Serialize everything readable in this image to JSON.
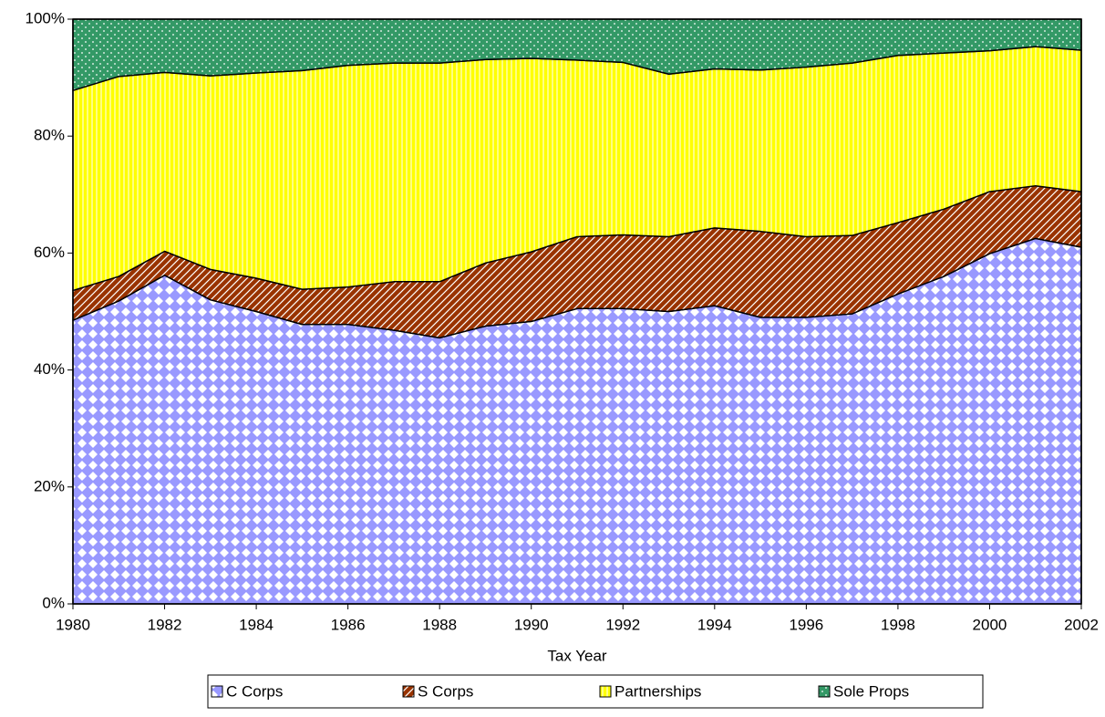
{
  "chart_data": {
    "type": "stacked_area",
    "x_label": "Tax Year",
    "x": [
      1980,
      1981,
      1982,
      1983,
      1984,
      1985,
      1986,
      1987,
      1988,
      1989,
      1990,
      1991,
      1992,
      1993,
      1994,
      1995,
      1996,
      1997,
      1998,
      1999,
      2000,
      2001,
      2002
    ],
    "xlim": [
      1980,
      2002
    ],
    "xticks": [
      1980,
      1982,
      1984,
      1986,
      1988,
      1990,
      1992,
      1994,
      1996,
      1998,
      2000,
      2002
    ],
    "ylim": [
      0,
      100
    ],
    "yticks": [
      {
        "value": 0,
        "label": "0%"
      },
      {
        "value": 20,
        "label": "20%"
      },
      {
        "value": 40,
        "label": "40%"
      },
      {
        "value": 60,
        "label": "60%"
      },
      {
        "value": 80,
        "label": "80%"
      },
      {
        "value": 100,
        "label": "100%"
      }
    ],
    "series": [
      {
        "name": "C Corps",
        "color": "#9999ff",
        "values": [
          48.5,
          51.8,
          56.2,
          52,
          50,
          47.8,
          47.8,
          46.8,
          45.5,
          47.5,
          48.3,
          50.5,
          50.5,
          50,
          51,
          49,
          49,
          49.6,
          53,
          56,
          59.9,
          62.5,
          61
        ]
      },
      {
        "name": "S Corps",
        "color": "#993300",
        "values": [
          5.1,
          4.2,
          4.1,
          5.2,
          5.7,
          6,
          6.4,
          8.3,
          9.6,
          10.8,
          11.9,
          12.3,
          12.6,
          12.8,
          13.3,
          14.7,
          13.8,
          13.4,
          12.2,
          11.5,
          10.6,
          9,
          9.5
        ]
      },
      {
        "name": "Partnerships",
        "color": "#ffff00",
        "values": [
          34.2,
          34.2,
          30.6,
          33.1,
          35.1,
          37.4,
          37.9,
          37.4,
          37.4,
          34.8,
          33.1,
          30.2,
          29.5,
          27.8,
          27.2,
          27.6,
          29,
          29.5,
          28.6,
          26.7,
          24.1,
          23.8,
          24.2
        ]
      },
      {
        "name": "Sole Props",
        "color": "#339966",
        "values": [
          12.2,
          9.8,
          9.1,
          9.7,
          9.2,
          8.8,
          7.9,
          7.5,
          7.5,
          6.9,
          6.7,
          7,
          7.4,
          9.4,
          8.5,
          8.7,
          8.2,
          7.5,
          6.2,
          5.8,
          5.4,
          4.7,
          5.3
        ]
      }
    ]
  }
}
